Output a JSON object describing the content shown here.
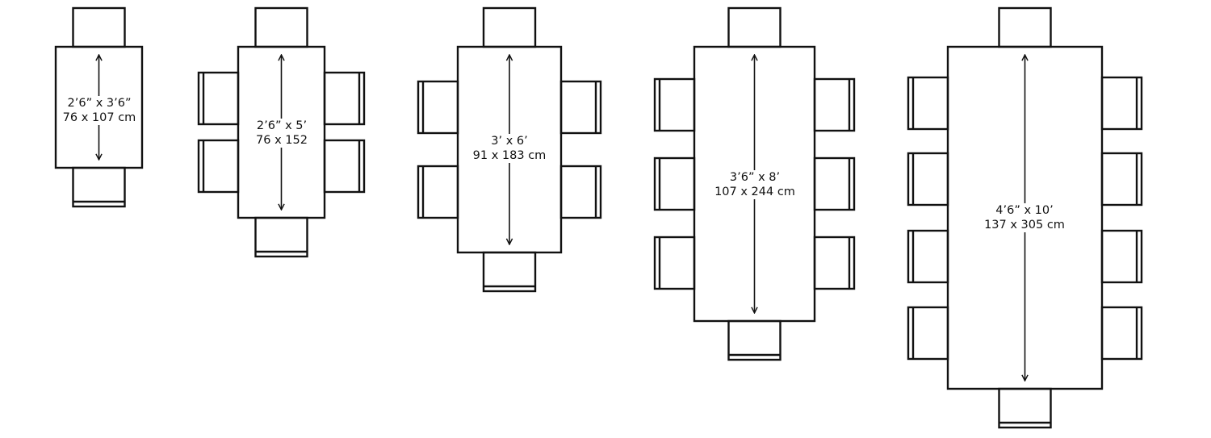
{
  "tables": [
    {
      "size_imperial": "2’6” x 3’6”",
      "size_metric": "76 x 107 cm",
      "seats_long_side": 0,
      "seats_ends": 2
    },
    {
      "size_imperial": "2’6” x 5’",
      "size_metric": "76 x 152",
      "seats_long_side": 2,
      "seats_ends": 2
    },
    {
      "size_imperial": "3’ x 6’",
      "size_metric": "91 x 183 cm",
      "seats_long_side": 2,
      "seats_ends": 2
    },
    {
      "size_imperial": "3’6” x 8’",
      "size_metric": "107 x 244 cm",
      "seats_long_side": 3,
      "seats_ends": 2
    },
    {
      "size_imperial": "4’6” x 10’",
      "size_metric": "137 x 305 cm",
      "seats_long_side": 4,
      "seats_ends": 2
    }
  ],
  "colors": {
    "line": "#111111",
    "background": "#ffffff"
  }
}
